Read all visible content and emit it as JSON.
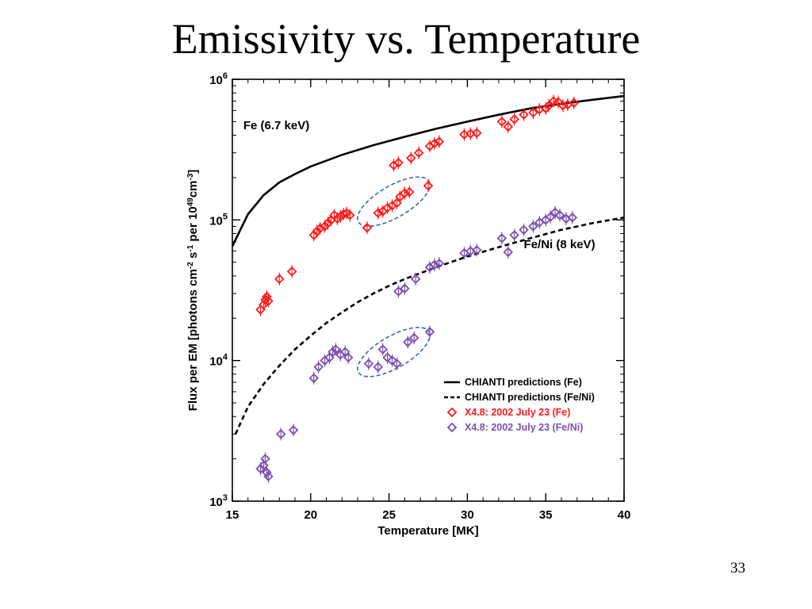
{
  "slide": {
    "title": "Emissivity vs. Temperature",
    "page_number": "33"
  },
  "chart_data": {
    "type": "scatter",
    "xlabel": "Temperature [MK]",
    "ylabel": "Flux per EM [photons cm-2 s-1 per 10^49 cm-3]",
    "ylabel_parts": {
      "a": "Flux per EM [photons cm",
      "b": "-2",
      "c": " s",
      "d": "-1",
      "e": " per 10",
      "f": "49",
      "g": "cm",
      "h": "-3",
      "i": "]"
    },
    "xlim": [
      15,
      40
    ],
    "ylim": [
      1000,
      1000000
    ],
    "y_scale": "log",
    "x_ticks": [
      15,
      20,
      25,
      30,
      35,
      40
    ],
    "x_tick_labels": [
      "15",
      "20",
      "25",
      "30",
      "35",
      "40"
    ],
    "y_ticks": [
      {
        "value": 1000,
        "base": "10",
        "exp": "3"
      },
      {
        "value": 10000,
        "base": "10",
        "exp": "4"
      },
      {
        "value": 100000,
        "base": "10",
        "exp": "5"
      },
      {
        "value": 1000000,
        "base": "10",
        "exp": "6"
      }
    ],
    "annotations": [
      {
        "text": "Fe (6.7 keV)",
        "x": 15.7,
        "y": 440000
      },
      {
        "text": "Fe/Ni (8 keV)",
        "x": 33.6,
        "y": 63000
      }
    ],
    "legend": {
      "position": "lower-right",
      "entries": [
        {
          "label": "CHIANTI predictions (Fe)",
          "marker": "solid-line",
          "color": "#000000"
        },
        {
          "label": "CHIANTI predictions (Fe/Ni)",
          "marker": "dashed-line",
          "color": "#000000"
        },
        {
          "label": "X4.8: 2002 July 23 (Fe)",
          "marker": "diamond",
          "color": "#ff1a1a"
        },
        {
          "label": "X4.8: 2002 July 23 (Fe/Ni)",
          "marker": "diamond",
          "color": "#7a4fb0"
        }
      ]
    },
    "series": [
      {
        "label": "CHIANTI predictions (Fe)",
        "style": "solid",
        "color": "#000000",
        "points": [
          [
            15,
            65000
          ],
          [
            16,
            110000
          ],
          [
            17,
            150000
          ],
          [
            18,
            185000
          ],
          [
            19,
            212000
          ],
          [
            20,
            240000
          ],
          [
            22,
            290000
          ],
          [
            24,
            340000
          ],
          [
            26,
            390000
          ],
          [
            28,
            445000
          ],
          [
            30,
            500000
          ],
          [
            32,
            560000
          ],
          [
            34,
            620000
          ],
          [
            36,
            670000
          ],
          [
            38,
            715000
          ],
          [
            40,
            760000
          ]
        ]
      },
      {
        "label": "CHIANTI predictions (Fe/Ni)",
        "style": "dashed",
        "color": "#000000",
        "points": [
          [
            15.2,
            3000
          ],
          [
            16,
            4700
          ],
          [
            17,
            6800
          ],
          [
            18,
            9200
          ],
          [
            19,
            12000
          ],
          [
            20,
            15000
          ],
          [
            21,
            18500
          ],
          [
            22,
            22000
          ],
          [
            23,
            26000
          ],
          [
            24,
            30000
          ],
          [
            25,
            34000
          ],
          [
            26,
            38000
          ],
          [
            28,
            46000
          ],
          [
            30,
            55000
          ],
          [
            32,
            64000
          ],
          [
            34,
            74000
          ],
          [
            36,
            85000
          ],
          [
            38,
            95000
          ],
          [
            40,
            104000
          ]
        ]
      },
      {
        "label": "X4.8: 2002 July 23 (Fe)",
        "style": "diamond",
        "color": "#ff1a1a",
        "points": [
          [
            16.8,
            23000
          ],
          [
            17.0,
            25000
          ],
          [
            17.1,
            27000
          ],
          [
            17.2,
            28500
          ],
          [
            17.3,
            26500
          ],
          [
            18.0,
            38000
          ],
          [
            18.8,
            43000
          ],
          [
            20.2,
            78000
          ],
          [
            20.4,
            83000
          ],
          [
            20.6,
            87000
          ],
          [
            20.9,
            90000
          ],
          [
            21.1,
            95000
          ],
          [
            21.3,
            100000
          ],
          [
            21.5,
            108000
          ],
          [
            21.7,
            102000
          ],
          [
            21.9,
            106000
          ],
          [
            22.1,
            110000
          ],
          [
            22.3,
            112000
          ],
          [
            22.5,
            108000
          ],
          [
            23.6,
            88000
          ],
          [
            24.3,
            112000
          ],
          [
            24.6,
            115000
          ],
          [
            24.9,
            122000
          ],
          [
            25.2,
            126000
          ],
          [
            25.5,
            132000
          ],
          [
            25.7,
            146000
          ],
          [
            26.0,
            155000
          ],
          [
            26.3,
            158000
          ],
          [
            27.5,
            175000
          ],
          [
            25.3,
            245000
          ],
          [
            25.6,
            255000
          ],
          [
            26.4,
            275000
          ],
          [
            26.9,
            300000
          ],
          [
            27.6,
            335000
          ],
          [
            27.9,
            350000
          ],
          [
            28.2,
            360000
          ],
          [
            29.8,
            405000
          ],
          [
            30.2,
            410000
          ],
          [
            30.6,
            415000
          ],
          [
            32.2,
            500000
          ],
          [
            32.6,
            460000
          ],
          [
            33.0,
            520000
          ],
          [
            33.6,
            560000
          ],
          [
            34.2,
            580000
          ],
          [
            34.6,
            610000
          ],
          [
            35.0,
            620000
          ],
          [
            35.2,
            650000
          ],
          [
            35.5,
            700000
          ],
          [
            35.8,
            690000
          ],
          [
            36.1,
            650000
          ],
          [
            36.4,
            660000
          ],
          [
            36.8,
            680000
          ]
        ]
      },
      {
        "label": "X4.8: 2002 July 23 (Fe/Ni)",
        "style": "diamond",
        "color": "#7a4fb0",
        "points": [
          [
            16.8,
            1700
          ],
          [
            17.0,
            1800
          ],
          [
            17.1,
            2000
          ],
          [
            17.2,
            1600
          ],
          [
            17.3,
            1500
          ],
          [
            18.1,
            3000
          ],
          [
            18.9,
            3200
          ],
          [
            20.2,
            7500
          ],
          [
            20.5,
            9000
          ],
          [
            20.9,
            10000
          ],
          [
            21.2,
            10500
          ],
          [
            21.4,
            11500
          ],
          [
            21.6,
            12000
          ],
          [
            21.9,
            11000
          ],
          [
            22.2,
            11500
          ],
          [
            22.4,
            10500
          ],
          [
            23.7,
            9500
          ],
          [
            24.3,
            9000
          ],
          [
            24.6,
            12000
          ],
          [
            24.9,
            10500
          ],
          [
            25.2,
            10000
          ],
          [
            25.5,
            9500
          ],
          [
            26.2,
            13500
          ],
          [
            26.6,
            14500
          ],
          [
            27.6,
            16000
          ],
          [
            25.6,
            31000
          ],
          [
            26.0,
            32500
          ],
          [
            26.7,
            38000
          ],
          [
            27.6,
            46000
          ],
          [
            27.9,
            48000
          ],
          [
            28.2,
            49000
          ],
          [
            29.8,
            58000
          ],
          [
            30.2,
            60000
          ],
          [
            30.6,
            61000
          ],
          [
            32.6,
            59000
          ],
          [
            32.2,
            74000
          ],
          [
            33.0,
            78000
          ],
          [
            33.6,
            85000
          ],
          [
            34.2,
            90000
          ],
          [
            34.6,
            96000
          ],
          [
            35.0,
            100000
          ],
          [
            35.3,
            105000
          ],
          [
            35.6,
            113000
          ],
          [
            35.9,
            108000
          ],
          [
            36.3,
            102000
          ],
          [
            36.7,
            104000
          ]
        ]
      }
    ],
    "highlight_ellipses": [
      {
        "cx": 25.3,
        "cy": 135000,
        "rx_mk": 2.6,
        "tilt": -30,
        "color": "#3a64b0"
      },
      {
        "cx": 25.3,
        "cy": 11500,
        "rx_mk": 2.6,
        "tilt": -30,
        "color": "#3a64b0"
      }
    ]
  }
}
